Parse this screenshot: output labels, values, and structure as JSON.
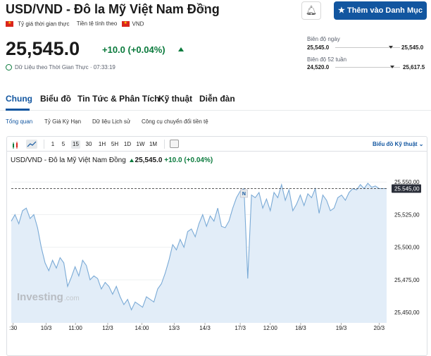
{
  "header": {
    "title": "USD/VND - Đô la Mỹ Việt Nam Đồng",
    "watchlist_label": "Thêm vào Danh Mục",
    "realtime_rate_label": "Tỷ giá thời gian thực",
    "currency_label": "Tiền tệ tính theo",
    "currency_code": "VND"
  },
  "quote": {
    "price": "25,545.0",
    "change": "+10.0 (+0.04%)",
    "realtime_text": "Dữ Liệu theo Thời Gian Thực · 07:33:19"
  },
  "ranges": {
    "day_label": "Biên độ ngày",
    "day_low": "25,545.0",
    "day_high": "25,545.0",
    "week52_label": "Biên độ 52 tuần",
    "week52_low": "24,520.0",
    "week52_high": "25,617.5"
  },
  "tabs": [
    "Chung",
    "Biểu đồ",
    "Tin Tức & Phân Tích",
    "Kỹ thuật",
    "Diễn đàn"
  ],
  "subtabs": [
    "Tổng quan",
    "Tỷ Giá Kỳ Hạn",
    "Dữ liệu Lịch sử",
    "Công cụ chuyển đổi tiền tệ"
  ],
  "chart_toolbar": {
    "periods": [
      "1",
      "5",
      "15",
      "30",
      "1H",
      "5H",
      "1D",
      "1W",
      "1M"
    ],
    "selected_period": "15",
    "advanced_link": "Biểu đồ Kỹ thuật"
  },
  "chart_header": {
    "symbol": "USD/VND - Đô la Mỹ Việt Nam Đồng",
    "price": "25,545.0",
    "change": "+10.0",
    "change_pct": "(+0.04%)"
  },
  "watermark": "Investing",
  "watermark_suffix": ".com",
  "marker_label": "N",
  "colors": {
    "accent": "#1256a0",
    "up": "#0a7a3c",
    "line": "#7aaad6",
    "area": "#e2edf8"
  },
  "chart_data": {
    "type": "area",
    "y_ticks": [
      "25,550,00",
      "25,525,00",
      "25,500,00",
      "25,475,00",
      "25,450,00"
    ],
    "y_tick_values": [
      25550,
      25525,
      25500,
      25475,
      25450
    ],
    "current_label": "25.545,00",
    "current_value": 25545,
    "ylim": [
      25442,
      25562
    ],
    "x_ticks": [
      ":30",
      "10/3",
      "11:00",
      "12/3",
      "14:00",
      "13/3",
      "14/3",
      "17/3",
      "12:00",
      "18/3",
      "19/3",
      "20/3"
    ],
    "x_tick_positions": [
      0.5,
      9.3,
      17.1,
      25.7,
      34.8,
      43.4,
      51.6,
      61.0,
      69.0,
      77.1,
      87.9,
      98.0
    ],
    "x": [
      0,
      1,
      2,
      3,
      4,
      5,
      6,
      7,
      8,
      9,
      10,
      11,
      12,
      13,
      14,
      15,
      16,
      17,
      18,
      19,
      20,
      21,
      22,
      23,
      24,
      25,
      26,
      27,
      28,
      29,
      30,
      31,
      32,
      33,
      34,
      35,
      36,
      37,
      38,
      39,
      40,
      41,
      42,
      43,
      44,
      45,
      46,
      47,
      48,
      49,
      50,
      51,
      52,
      53,
      54,
      55,
      56,
      57,
      58,
      59,
      60,
      61,
      62,
      63,
      64,
      65,
      66,
      67,
      68,
      69,
      70,
      71,
      72,
      73,
      74,
      75,
      76,
      77,
      78,
      79,
      80,
      81,
      82,
      83,
      84,
      85,
      86,
      87,
      88,
      89,
      90,
      91,
      92,
      93,
      94,
      95,
      96,
      97,
      98,
      99,
      100
    ],
    "values": [
      25520,
      25525,
      25518,
      25528,
      25530,
      25522,
      25525,
      25515,
      25500,
      25488,
      25482,
      25490,
      25484,
      25492,
      25488,
      25470,
      25477,
      25485,
      25478,
      25490,
      25486,
      25475,
      25478,
      25476,
      25468,
      25473,
      25470,
      25464,
      25470,
      25462,
      25456,
      25460,
      25452,
      25458,
      25456,
      25454,
      25462,
      25460,
      25458,
      25468,
      25472,
      25480,
      25490,
      25502,
      25498,
      25506,
      25500,
      25512,
      25514,
      25508,
      25518,
      25525,
      25516,
      25524,
      25520,
      25530,
      25516,
      25515,
      25520,
      25530,
      25538,
      25543,
      25545,
      25476,
      25540,
      25538,
      25542,
      25530,
      25537,
      25528,
      25542,
      25538,
      25548,
      25536,
      25544,
      25528,
      25533,
      25540,
      25532,
      25541,
      25538,
      25545,
      25526,
      25540,
      25536,
      25528,
      25530,
      25538,
      25540,
      25536,
      25542,
      25545,
      25544,
      25548,
      25545,
      25549,
      25546,
      25547,
      25545,
      25545,
      25545
    ],
    "ylabel": "",
    "xlabel": "",
    "title": ""
  }
}
